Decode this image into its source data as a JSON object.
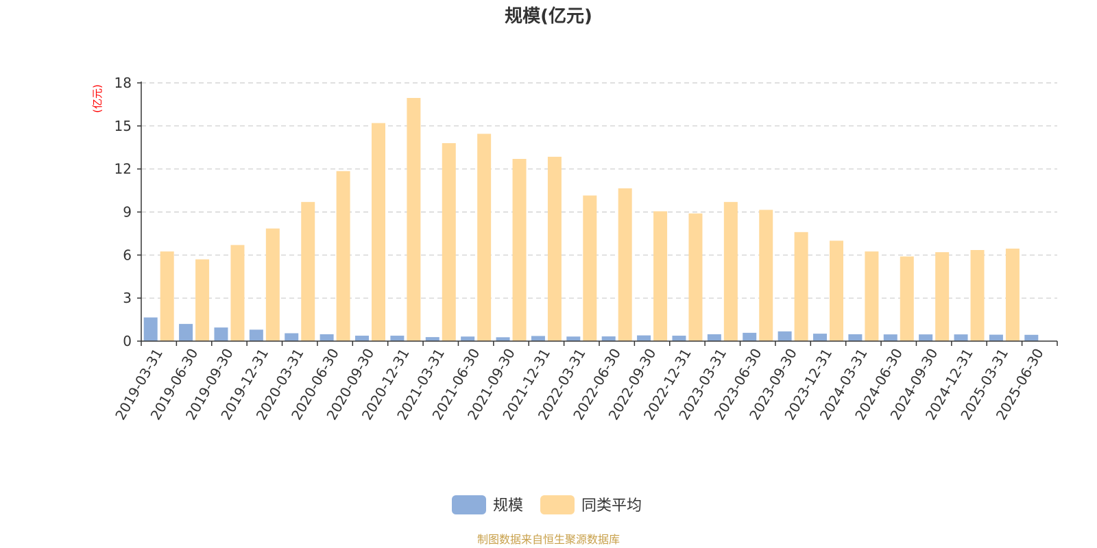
{
  "chart_data": {
    "type": "bar",
    "title": "规模(亿元)",
    "ylabel": "(亿元)",
    "xlabel": "",
    "ylim": [
      0,
      18
    ],
    "yticks": [
      0,
      3,
      6,
      9,
      12,
      15,
      18
    ],
    "grid": true,
    "legend_position": "bottom-center",
    "categories": [
      "2019-03-31",
      "2019-06-30",
      "2019-09-30",
      "2019-12-31",
      "2020-03-31",
      "2020-06-30",
      "2020-09-30",
      "2020-12-31",
      "2021-03-31",
      "2021-06-30",
      "2021-09-30",
      "2021-12-31",
      "2022-03-31",
      "2022-06-30",
      "2022-09-30",
      "2022-12-31",
      "2023-03-31",
      "2023-06-30",
      "2023-09-30",
      "2023-12-31",
      "2024-03-31",
      "2024-06-30",
      "2024-09-30",
      "2024-12-31",
      "2025-03-31",
      "2025-06-30"
    ],
    "series": [
      {
        "name": "规模",
        "color": "#8eaedb",
        "values": [
          1.65,
          1.2,
          0.95,
          0.8,
          0.55,
          0.48,
          0.38,
          0.38,
          0.28,
          0.32,
          0.27,
          0.36,
          0.32,
          0.33,
          0.4,
          0.38,
          0.48,
          0.58,
          0.68,
          0.52,
          0.48,
          0.47,
          0.47,
          0.47,
          0.45,
          0.44
        ]
      },
      {
        "name": "同类平均",
        "color": "#ffd99b",
        "values": [
          6.25,
          5.7,
          6.7,
          7.85,
          9.7,
          11.85,
          15.2,
          16.95,
          13.8,
          14.45,
          12.7,
          12.85,
          10.15,
          10.65,
          9.05,
          8.9,
          9.7,
          9.15,
          7.6,
          7.0,
          6.25,
          5.9,
          6.2,
          6.35,
          6.45,
          null
        ]
      }
    ]
  },
  "footer": {
    "source": "制图数据来自恒生聚源数据库"
  }
}
